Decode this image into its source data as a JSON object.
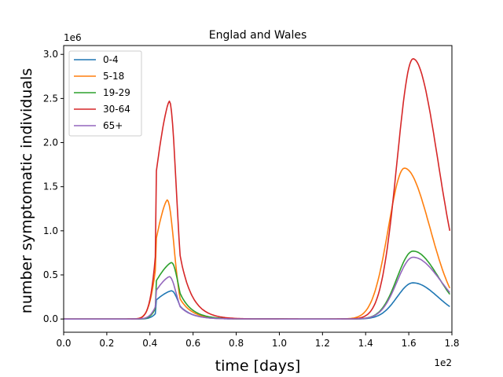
{
  "chart_data": {
    "type": "line",
    "title": "Englad and Wales",
    "xlabel": "time  [days]",
    "ylabel": "number symptomatic individuals",
    "x_offset_text": "1e2",
    "y_offset_text": "1e6",
    "xlim": [
      0.0,
      1.8
    ],
    "ylim": [
      -0.15,
      3.1
    ],
    "x_ticks": [
      0.0,
      0.2,
      0.4,
      0.6,
      0.8,
      1.0,
      1.2,
      1.4,
      1.6,
      1.8
    ],
    "x_tick_labels": [
      "0.0",
      "0.2",
      "0.4",
      "0.6",
      "0.8",
      "1.0",
      "1.2",
      "1.4",
      "1.6",
      "1.8"
    ],
    "y_ticks": [
      0.0,
      0.5,
      1.0,
      1.5,
      2.0,
      2.5,
      3.0
    ],
    "y_tick_labels": [
      "0.0",
      "0.5",
      "1.0",
      "1.5",
      "2.0",
      "2.5",
      "3.0"
    ],
    "legend_position": "top-left",
    "series": [
      {
        "name": "0-4",
        "color": "#1f77b4",
        "peak1": {
          "x": 0.5,
          "y": 0.32
        },
        "peak2": {
          "x": 1.62,
          "y": 0.41
        },
        "end_y": 0.14
      },
      {
        "name": "5-18",
        "color": "#ff7f0e",
        "peak1": {
          "x": 0.48,
          "y": 1.35
        },
        "peak2": {
          "x": 1.58,
          "y": 1.71
        },
        "end_y": 0.35
      },
      {
        "name": "19-29",
        "color": "#2ca02c",
        "peak1": {
          "x": 0.5,
          "y": 0.64
        },
        "peak2": {
          "x": 1.62,
          "y": 0.77
        },
        "end_y": 0.28
      },
      {
        "name": "30-64",
        "color": "#d62728",
        "peak1": {
          "x": 0.49,
          "y": 2.47
        },
        "peak2": {
          "x": 1.62,
          "y": 2.95
        },
        "end_y": 1.0
      },
      {
        "name": "65+",
        "color": "#9467bd",
        "peak1": {
          "x": 0.49,
          "y": 0.48
        },
        "peak2": {
          "x": 1.62,
          "y": 0.7
        },
        "end_y": 0.3
      }
    ]
  }
}
